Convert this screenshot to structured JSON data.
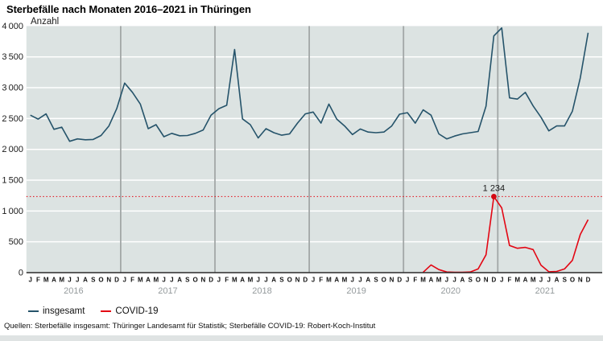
{
  "title": "Sterbefälle nach Monaten 2016–2021 in Thüringen",
  "chart_data": {
    "type": "line",
    "ylabel": "Anzahl",
    "ylim": [
      0,
      4000
    ],
    "ytick_step": 500,
    "grid": "horizontal white gridlines on grey panel, grey vertical year separators",
    "legend_position": "bottom-left",
    "plot_bg": "#dce3e2",
    "years": [
      "2016",
      "2017",
      "2018",
      "2019",
      "2020",
      "2021"
    ],
    "month_letters": [
      "J",
      "F",
      "M",
      "A",
      "M",
      "J",
      "J",
      "A",
      "S",
      "O",
      "N",
      "D"
    ],
    "series": [
      {
        "name": "insgesamt",
        "color": "#25536a",
        "values": [
          2555,
          2490,
          2575,
          2325,
          2360,
          2130,
          2170,
          2155,
          2160,
          2225,
          2380,
          2660,
          3075,
          2925,
          2735,
          2335,
          2400,
          2205,
          2260,
          2220,
          2225,
          2260,
          2315,
          2555,
          2660,
          2715,
          3620,
          2495,
          2400,
          2185,
          2335,
          2270,
          2230,
          2250,
          2425,
          2575,
          2605,
          2425,
          2735,
          2490,
          2380,
          2240,
          2330,
          2280,
          2270,
          2280,
          2380,
          2570,
          2595,
          2425,
          2640,
          2555,
          2250,
          2170,
          2215,
          2250,
          2270,
          2290,
          2700,
          3840,
          3970,
          2835,
          2815,
          2925,
          2705,
          2520,
          2300,
          2380,
          2380,
          2620,
          3160,
          3890
        ]
      },
      {
        "name": "COVID-19",
        "color": "#e30613",
        "values": [
          null,
          null,
          null,
          null,
          null,
          null,
          null,
          null,
          null,
          null,
          null,
          null,
          null,
          null,
          null,
          null,
          null,
          null,
          null,
          null,
          null,
          null,
          null,
          null,
          null,
          null,
          null,
          null,
          null,
          null,
          null,
          null,
          null,
          null,
          null,
          null,
          null,
          null,
          null,
          null,
          null,
          null,
          null,
          null,
          null,
          null,
          null,
          null,
          null,
          null,
          5,
          125,
          50,
          10,
          5,
          5,
          10,
          60,
          290,
          1234,
          1050,
          440,
          395,
          410,
          375,
          120,
          15,
          20,
          60,
          200,
          620,
          860
        ]
      }
    ],
    "annotation": {
      "label": "1 234",
      "value": 1234,
      "series": "COVID-19",
      "month_index": 59,
      "dotted_reference_line": true
    }
  },
  "legend": {
    "items": [
      {
        "label": "insgesamt",
        "color": "#25536a"
      },
      {
        "label": "COVID-19",
        "color": "#e30613"
      }
    ]
  },
  "source": "Quellen: Sterbefälle insgesamt: Thüringer Landesamt für Statistik; Sterbefälle COVID-19: Robert-Koch-Institut",
  "colors": {
    "accent_total": "#25536a",
    "accent_covid": "#e30613",
    "plot_background": "#dce3e2",
    "gridline": "#ffffff",
    "year_divider": "#a2a7a7",
    "axis_line": "#2b2b2b",
    "year_label": "#949a9c"
  }
}
